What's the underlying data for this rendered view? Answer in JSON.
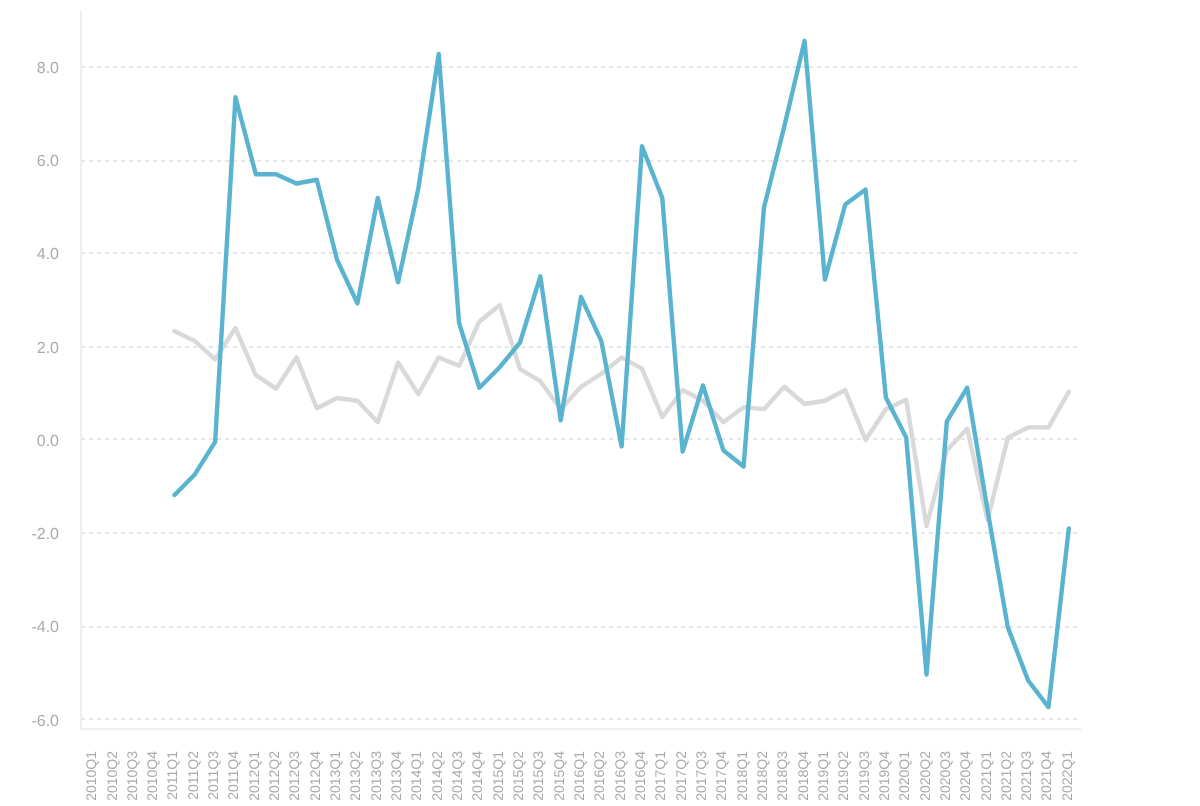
{
  "chart_data": {
    "type": "line",
    "categories": [
      "2010Q1",
      "2010Q2",
      "2010Q3",
      "2010Q4",
      "2011Q1",
      "2011Q2",
      "2011Q3",
      "2011Q4",
      "2012Q1",
      "2012Q2",
      "2012Q3",
      "2012Q4",
      "2013Q1",
      "2013Q2",
      "2013Q3",
      "2013Q4",
      "2014Q1",
      "2014Q2",
      "2014Q3",
      "2014Q4",
      "2015Q1",
      "2015Q2",
      "2015Q3",
      "2015Q4",
      "2016Q1",
      "2016Q2",
      "2016Q3",
      "2016Q4",
      "2017Q1",
      "2017Q2",
      "2017Q3",
      "2017Q4",
      "2018Q1",
      "2018Q2",
      "2018Q3",
      "2018Q4",
      "2019Q1",
      "2019Q2",
      "2019Q3",
      "2019Q4",
      "2020Q1",
      "2020Q2",
      "2020Q3",
      "2020Q4",
      "2021Q1",
      "2021Q2",
      "2021Q3",
      "2021Q4",
      "2022Q1"
    ],
    "series": [
      {
        "color": "#d9d9d9",
        "values": [
          null,
          null,
          null,
          null,
          2.33,
          2.12,
          1.73,
          2.4,
          1.39,
          1.1,
          1.77,
          0.68,
          0.9,
          0.84,
          0.38,
          1.66,
          0.98,
          1.77,
          1.59,
          2.54,
          2.89,
          1.52,
          1.26,
          0.66,
          1.14,
          1.42,
          1.77,
          1.53,
          0.49,
          1.07,
          0.84,
          0.38,
          0.7,
          0.66,
          1.14,
          0.77,
          0.84,
          1.07,
          0.0,
          0.66,
          0.86,
          -1.85,
          -0.22,
          0.24,
          -1.72,
          0.05,
          0.27,
          0.27,
          1.03
        ]
      },
      {
        "color": "#5ab4cf",
        "values": [
          null,
          null,
          null,
          null,
          -1.18,
          -0.74,
          -0.04,
          7.35,
          5.7,
          5.7,
          5.5,
          5.58,
          3.86,
          2.93,
          5.19,
          3.38,
          5.4,
          8.28,
          2.51,
          1.12,
          1.56,
          2.09,
          3.51,
          0.42,
          3.07,
          2.12,
          -0.14,
          6.3,
          5.19,
          -0.25,
          1.17,
          -0.22,
          -0.57,
          4.98,
          6.72,
          8.56,
          3.44,
          5.05,
          5.37,
          0.91,
          0.05,
          -5.03,
          0.4,
          1.12,
          -1.5,
          -4.02,
          -5.16,
          -5.73,
          -1.9
        ]
      }
    ],
    "ylim": [
      -6.2,
      9.2
    ],
    "yticks": [
      {
        "value": -6,
        "label": "-6.0"
      },
      {
        "value": -4,
        "label": "-4.0"
      },
      {
        "value": -2,
        "label": "-2.0"
      },
      {
        "value": 0,
        "label": "0.0"
      },
      {
        "value": 2,
        "label": "2.0"
      },
      {
        "value": 4,
        "label": "4.0"
      },
      {
        "value": 6,
        "label": "6.0"
      },
      {
        "value": 8,
        "label": "8.0"
      }
    ],
    "grid": "y",
    "line_style": "solid"
  }
}
